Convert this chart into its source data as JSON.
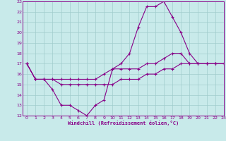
{
  "xlabel": "Windchill (Refroidissement éolien,°C)",
  "xlim": [
    -0.5,
    23
  ],
  "ylim": [
    12,
    23
  ],
  "yticks": [
    12,
    13,
    14,
    15,
    16,
    17,
    18,
    19,
    20,
    21,
    22,
    23
  ],
  "xticks": [
    0,
    1,
    2,
    3,
    4,
    5,
    6,
    7,
    8,
    9,
    10,
    11,
    12,
    13,
    14,
    15,
    16,
    17,
    18,
    19,
    20,
    21,
    22,
    23
  ],
  "bg_color": "#c8eaea",
  "grid_color": "#a0cccc",
  "line_color": "#880088",
  "line1": {
    "x": [
      0,
      1,
      2,
      3,
      4,
      5,
      6,
      7,
      8,
      9,
      10,
      11,
      12,
      13,
      14,
      15,
      16,
      17,
      18,
      19,
      20,
      21,
      22,
      23
    ],
    "y": [
      17,
      15.5,
      15.5,
      14.5,
      13,
      13,
      12.5,
      12,
      13,
      13.5,
      16.5,
      17,
      18,
      20.5,
      22.5,
      22.5,
      23,
      21.5,
      20,
      18,
      17,
      17,
      17,
      17
    ]
  },
  "line2": {
    "x": [
      0,
      1,
      2,
      3,
      4,
      5,
      6,
      7,
      8,
      9,
      10,
      11,
      12,
      13,
      14,
      15,
      16,
      17,
      18,
      19,
      20,
      21,
      22,
      23
    ],
    "y": [
      17,
      15.5,
      15.5,
      15.5,
      15.5,
      15.5,
      15.5,
      15.5,
      15.5,
      16,
      16.5,
      16.5,
      16.5,
      16.5,
      17,
      17,
      17.5,
      18,
      18,
      17,
      17,
      17,
      17,
      17
    ]
  },
  "line3": {
    "x": [
      0,
      1,
      2,
      3,
      4,
      5,
      6,
      7,
      8,
      9,
      10,
      11,
      12,
      13,
      14,
      15,
      16,
      17,
      18,
      19,
      20,
      21,
      22,
      23
    ],
    "y": [
      17,
      15.5,
      15.5,
      15.5,
      15,
      15,
      15,
      15,
      15,
      15,
      15,
      15.5,
      15.5,
      15.5,
      16,
      16,
      16.5,
      16.5,
      17,
      17,
      17,
      17,
      17,
      17
    ]
  }
}
